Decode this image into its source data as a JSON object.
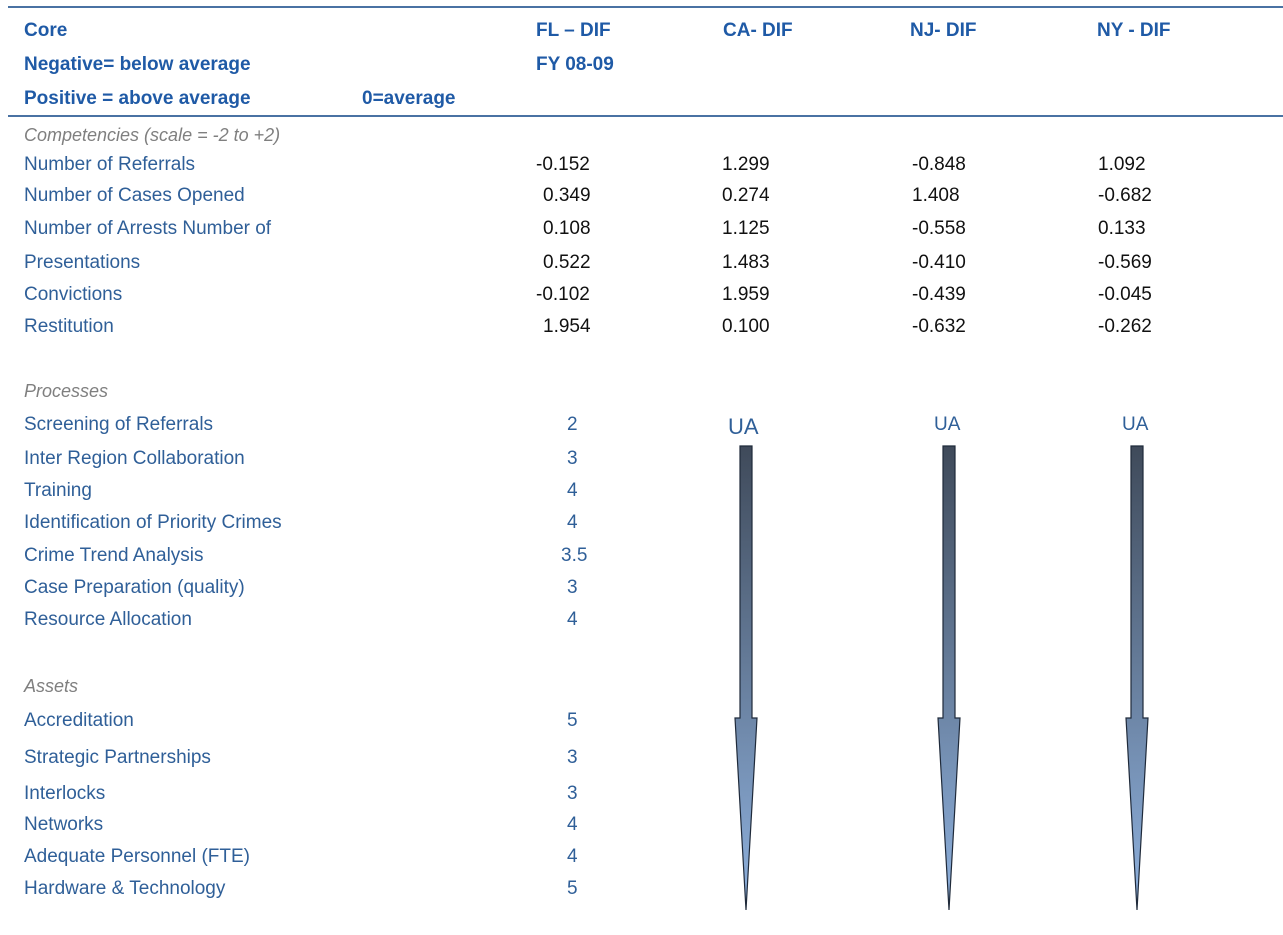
{
  "header": {
    "core_label": "Core",
    "negative_label": "Negative= below average",
    "positive_label": "Positive = above average",
    "zero_label": "0=average",
    "columns": [
      "FL – DIF",
      "CA- DIF",
      "NJ- DIF",
      "NY - DIF"
    ],
    "fiscal_year": "FY 08-09"
  },
  "competencies": {
    "section_label": "Competencies (scale = -2 to +2)",
    "rows": [
      {
        "label": "Number of Referrals",
        "values": [
          "-0.152",
          "1.299",
          "-0.848",
          "1.092"
        ]
      },
      {
        "label": "Number of Cases Opened",
        "values": [
          "0.349",
          "0.274",
          "1.408",
          "-0.682"
        ]
      },
      {
        "label": "Number of Arrests Number of",
        "values": [
          "0.108",
          "1.125",
          "-0.558",
          "0.133"
        ]
      },
      {
        "label": "Presentations",
        "values": [
          "0.522",
          "1.483",
          "-0.410",
          "-0.569"
        ]
      },
      {
        "label": "Convictions",
        "values": [
          "-0.102",
          "1.959",
          "-0.439",
          "-0.045"
        ]
      },
      {
        "label": "Restitution",
        "values": [
          "1.954",
          "0.100",
          "-0.632",
          "-0.262"
        ]
      }
    ]
  },
  "processes": {
    "section_label": "Processes",
    "rows": [
      {
        "label": "Screening of Referrals",
        "score": "2"
      },
      {
        "label": "Inter Region Collaboration",
        "score": "3"
      },
      {
        "label": "Training",
        "score": "4"
      },
      {
        "label": "Identification of Priority Crimes",
        "score": "4"
      },
      {
        "label": "Crime Trend Analysis",
        "score": "3.5"
      },
      {
        "label": "Case Preparation (quality)",
        "score": "3"
      },
      {
        "label": "Resource Allocation",
        "score": "4"
      }
    ]
  },
  "assets": {
    "section_label": "Assets",
    "rows": [
      {
        "label": "Accreditation",
        "score": "5"
      },
      {
        "label": "Strategic Partnerships",
        "score": "3"
      },
      {
        "label": "Interlocks",
        "score": "3"
      },
      {
        "label": "Networks",
        "score": "4"
      },
      {
        "label": "Adequate Personnel (FTE)",
        "score": "4"
      },
      {
        "label": "Hardware & Technology",
        "score": "5"
      }
    ]
  },
  "unavailable": {
    "ca_label": "UA",
    "nj_label": "UA",
    "ny_label": "UA"
  },
  "colors": {
    "header_text": "#1f5aa6",
    "row_label": "#2f5f98",
    "rule": "#4a72a3",
    "arrow_top": "#3f4a5a",
    "arrow_bottom": "#8fb2df"
  }
}
